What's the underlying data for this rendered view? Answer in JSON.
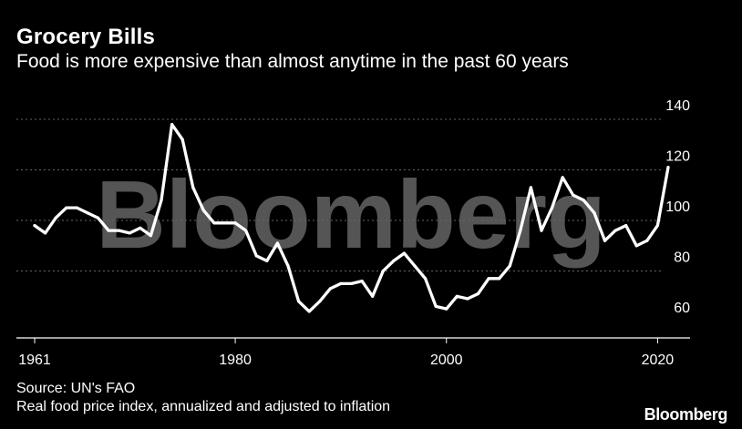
{
  "title": "Grocery Bills",
  "subtitle": "Food is more expensive than almost anytime in the past 60 years",
  "source": "Source: UN's FAO",
  "note": "Real food price index, annualized and adjusted to inflation",
  "brand": "Bloomberg",
  "watermark": "Bloomberg",
  "colors": {
    "background": "#000000",
    "line": "#ffffff",
    "grid": "#666666",
    "watermark": "#555555"
  },
  "chart_data": {
    "type": "line",
    "title": "Grocery Bills",
    "xlim": [
      1961,
      2021
    ],
    "ylim": [
      60,
      140
    ],
    "x_ticks": [
      1961,
      1980,
      2000,
      2020
    ],
    "y_ticks": [
      60,
      80,
      100,
      120,
      140
    ],
    "grid": "horizontal dotted",
    "series": [
      {
        "values": [
          [
            1961,
            98
          ],
          [
            1962,
            95
          ],
          [
            1963,
            101
          ],
          [
            1964,
            105
          ],
          [
            1965,
            105
          ],
          [
            1966,
            103
          ],
          [
            1967,
            101
          ],
          [
            1968,
            96
          ],
          [
            1969,
            96
          ],
          [
            1970,
            95
          ],
          [
            1971,
            97
          ],
          [
            1972,
            94
          ],
          [
            1973,
            108
          ],
          [
            1974,
            138
          ],
          [
            1975,
            132
          ],
          [
            1976,
            113
          ],
          [
            1977,
            104
          ],
          [
            1978,
            99
          ],
          [
            1979,
            99
          ],
          [
            1980,
            99
          ],
          [
            1981,
            96
          ],
          [
            1982,
            86
          ],
          [
            1983,
            84
          ],
          [
            1984,
            91
          ],
          [
            1985,
            82
          ],
          [
            1986,
            68
          ],
          [
            1987,
            64
          ],
          [
            1988,
            68
          ],
          [
            1989,
            73
          ],
          [
            1990,
            75
          ],
          [
            1991,
            75
          ],
          [
            1992,
            76
          ],
          [
            1993,
            70
          ],
          [
            1994,
            80
          ],
          [
            1995,
            84
          ],
          [
            1996,
            87
          ],
          [
            1997,
            82
          ],
          [
            1998,
            77
          ],
          [
            1999,
            66
          ],
          [
            2000,
            65
          ],
          [
            2001,
            70
          ],
          [
            2002,
            69
          ],
          [
            2003,
            71
          ],
          [
            2004,
            77
          ],
          [
            2005,
            77
          ],
          [
            2006,
            82
          ],
          [
            2007,
            96
          ],
          [
            2008,
            113
          ],
          [
            2009,
            96
          ],
          [
            2010,
            105
          ],
          [
            2011,
            117
          ],
          [
            2012,
            110
          ],
          [
            2013,
            108
          ],
          [
            2014,
            103
          ],
          [
            2015,
            92
          ],
          [
            2016,
            96
          ],
          [
            2017,
            98
          ],
          [
            2018,
            90
          ],
          [
            2019,
            92
          ],
          [
            2020,
            98
          ],
          [
            2021,
            121
          ]
        ]
      }
    ]
  }
}
